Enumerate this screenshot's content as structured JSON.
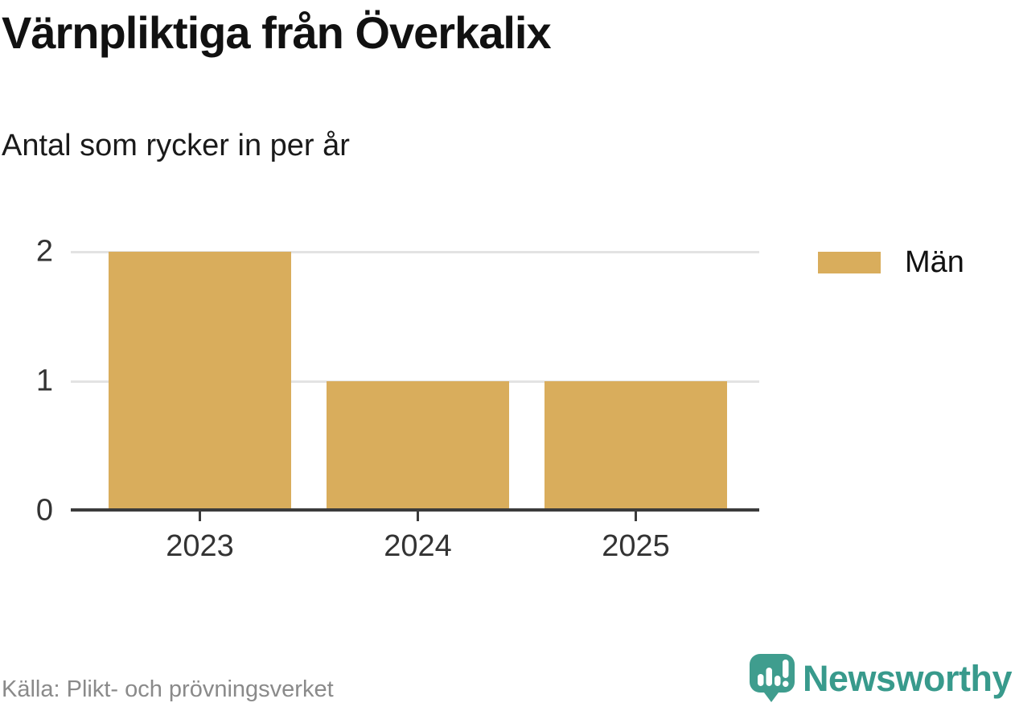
{
  "title": "Värnpliktiga från Överkalix",
  "subtitle": "Antal som rycker in per år",
  "chart_data": {
    "type": "bar",
    "categories": [
      "2023",
      "2024",
      "2025"
    ],
    "series": [
      {
        "name": "Män",
        "color": "#d9ad5c",
        "values": [
          2,
          1,
          1
        ]
      }
    ],
    "title": "Värnpliktiga från Överkalix",
    "subtitle": "Antal som rycker in per år",
    "xlabel": "",
    "ylabel": "",
    "ylim": [
      0,
      2
    ],
    "yticks": [
      0,
      1,
      2
    ],
    "grid": true,
    "legend_position": "right"
  },
  "legend": {
    "items": [
      {
        "label": "Män",
        "color": "#d9ad5c"
      }
    ]
  },
  "footer": {
    "source": "Källa: Plikt- och prövningsverket",
    "brand": "Newsworthy"
  },
  "icons": {
    "brand_logo": "newsworthy-speech-bubble-bar-chart-icon"
  },
  "colors": {
    "bar": "#d9ad5c",
    "axis": "#3b3b3b",
    "gridline": "#e3e3e3",
    "tick_text": "#333333",
    "source_text": "#8a8a8a",
    "brand_teal": "#389a8c",
    "background": "#ffffff"
  }
}
